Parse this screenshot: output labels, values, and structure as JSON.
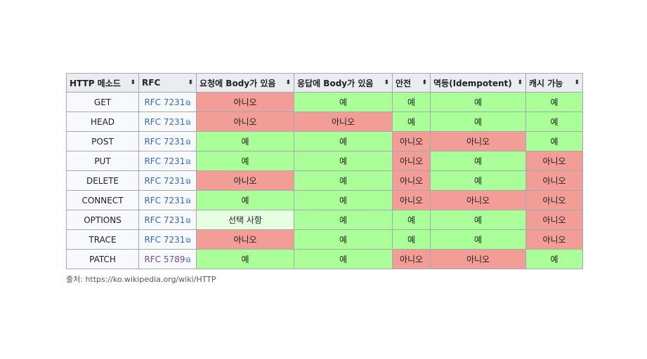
{
  "table": {
    "headers": [
      {
        "label": "HTTP 메소드",
        "sort_icon": "⬍"
      },
      {
        "label": "RFC",
        "sort_icon": "⬍"
      },
      {
        "label": "요청에 Body가 있음",
        "sort_icon": "⬍"
      },
      {
        "label": "응답에 Body가 있음",
        "sort_icon": "⬍"
      },
      {
        "label": "안전",
        "sort_icon": "⬍"
      },
      {
        "label": "멱등(Idempotent)",
        "sort_icon": "⬍"
      },
      {
        "label": "캐시 가능",
        "sort_icon": "⬍"
      }
    ],
    "ext_icon": "⧉",
    "rows": [
      {
        "method": "GET",
        "rfc": "RFC 7231",
        "rfc_visited": false,
        "cells": [
          {
            "text": "아니오",
            "status": "no"
          },
          {
            "text": "예",
            "status": "yes"
          },
          {
            "text": "예",
            "status": "yes"
          },
          {
            "text": "예",
            "status": "yes"
          },
          {
            "text": "예",
            "status": "yes"
          }
        ]
      },
      {
        "method": "HEAD",
        "rfc": "RFC 7231",
        "rfc_visited": false,
        "cells": [
          {
            "text": "아니오",
            "status": "no"
          },
          {
            "text": "아니오",
            "status": "no"
          },
          {
            "text": "예",
            "status": "yes"
          },
          {
            "text": "예",
            "status": "yes"
          },
          {
            "text": "예",
            "status": "yes"
          }
        ]
      },
      {
        "method": "POST",
        "rfc": "RFC 7231",
        "rfc_visited": false,
        "cells": [
          {
            "text": "예",
            "status": "yes"
          },
          {
            "text": "예",
            "status": "yes"
          },
          {
            "text": "아니오",
            "status": "no"
          },
          {
            "text": "아니오",
            "status": "no"
          },
          {
            "text": "예",
            "status": "yes"
          }
        ]
      },
      {
        "method": "PUT",
        "rfc": "RFC 7231",
        "rfc_visited": false,
        "cells": [
          {
            "text": "예",
            "status": "yes"
          },
          {
            "text": "예",
            "status": "yes"
          },
          {
            "text": "아니오",
            "status": "no"
          },
          {
            "text": "예",
            "status": "yes"
          },
          {
            "text": "아니오",
            "status": "no"
          }
        ]
      },
      {
        "method": "DELETE",
        "rfc": "RFC 7231",
        "rfc_visited": false,
        "cells": [
          {
            "text": "아니오",
            "status": "no"
          },
          {
            "text": "예",
            "status": "yes"
          },
          {
            "text": "아니오",
            "status": "no"
          },
          {
            "text": "예",
            "status": "yes"
          },
          {
            "text": "아니오",
            "status": "no"
          }
        ]
      },
      {
        "method": "CONNECT",
        "rfc": "RFC 7231",
        "rfc_visited": false,
        "cells": [
          {
            "text": "예",
            "status": "yes"
          },
          {
            "text": "예",
            "status": "yes"
          },
          {
            "text": "아니오",
            "status": "no"
          },
          {
            "text": "아니오",
            "status": "no"
          },
          {
            "text": "아니오",
            "status": "no"
          }
        ]
      },
      {
        "method": "OPTIONS",
        "rfc": "RFC 7231",
        "rfc_visited": false,
        "cells": [
          {
            "text": "선택 사항",
            "status": "opt"
          },
          {
            "text": "예",
            "status": "yes"
          },
          {
            "text": "예",
            "status": "yes"
          },
          {
            "text": "예",
            "status": "yes"
          },
          {
            "text": "아니오",
            "status": "no"
          }
        ]
      },
      {
        "method": "TRACE",
        "rfc": "RFC 7231",
        "rfc_visited": false,
        "cells": [
          {
            "text": "아니오",
            "status": "no"
          },
          {
            "text": "예",
            "status": "yes"
          },
          {
            "text": "예",
            "status": "yes"
          },
          {
            "text": "예",
            "status": "yes"
          },
          {
            "text": "아니오",
            "status": "no"
          }
        ]
      },
      {
        "method": "PATCH",
        "rfc": "RFC 5789",
        "rfc_visited": true,
        "cells": [
          {
            "text": "예",
            "status": "yes"
          },
          {
            "text": "예",
            "status": "yes"
          },
          {
            "text": "아니오",
            "status": "no"
          },
          {
            "text": "아니오",
            "status": "no"
          },
          {
            "text": "예",
            "status": "yes"
          }
        ]
      }
    ]
  },
  "source": "출처: https://ko.wikipedia.org/wiki/HTTP",
  "colors": {
    "yes": "#aaff99",
    "no": "#f29d96",
    "optional": "#e6ffe0",
    "header": "#eaecf0",
    "link": "#3366cc",
    "visited_link": "#6b4ba1"
  }
}
